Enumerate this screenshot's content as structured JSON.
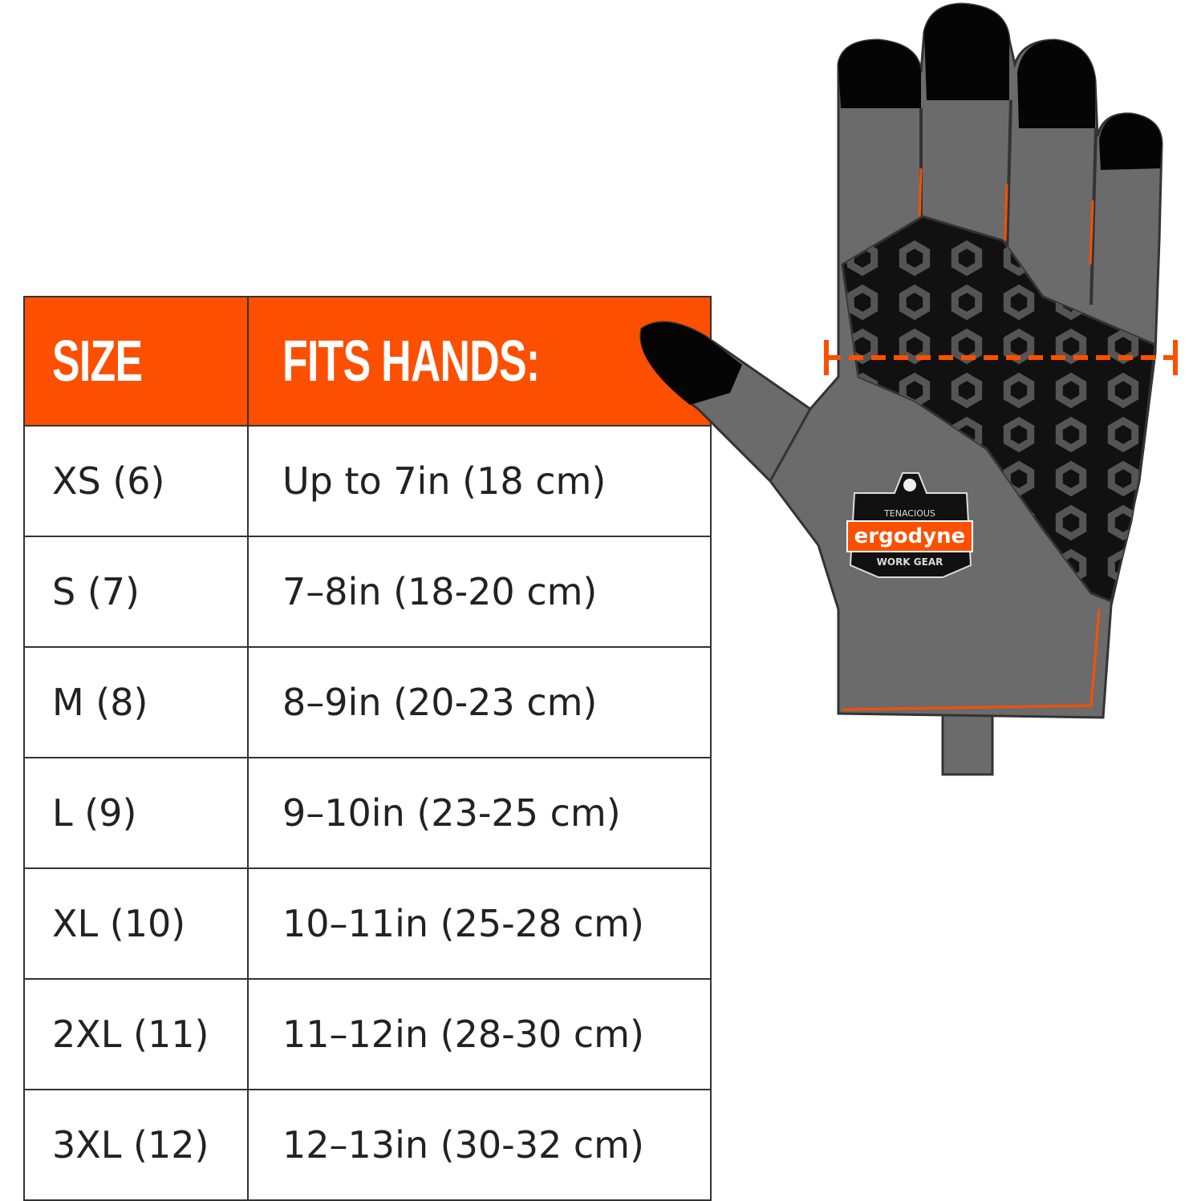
{
  "header": {
    "size": "SIZE",
    "fits": "FITS HANDS:"
  },
  "rows": [
    {
      "size": "XS (6)",
      "fits": "Up to 7in (18 cm)"
    },
    {
      "size": "S (7)",
      "fits": "7–8in (18-20 cm)"
    },
    {
      "size": "M (8)",
      "fits": "8–9in (20-23 cm)"
    },
    {
      "size": "L (9)",
      "fits": "9–10in (23-25 cm)"
    },
    {
      "size": "XL (10)",
      "fits": "10–11in (25-28 cm)"
    },
    {
      "size": "2XL (11)",
      "fits": "11–12in (28-30 cm)"
    },
    {
      "size": "3XL (12)",
      "fits": "12–13in (30-32 cm)"
    }
  ],
  "logo": {
    "brand": "ergodyne",
    "top": "TENACIOUS",
    "bottom": "WORK GEAR"
  },
  "colors": {
    "accent": "#fc4f00",
    "glove": "#6b6b6b",
    "grip": "#111111"
  }
}
